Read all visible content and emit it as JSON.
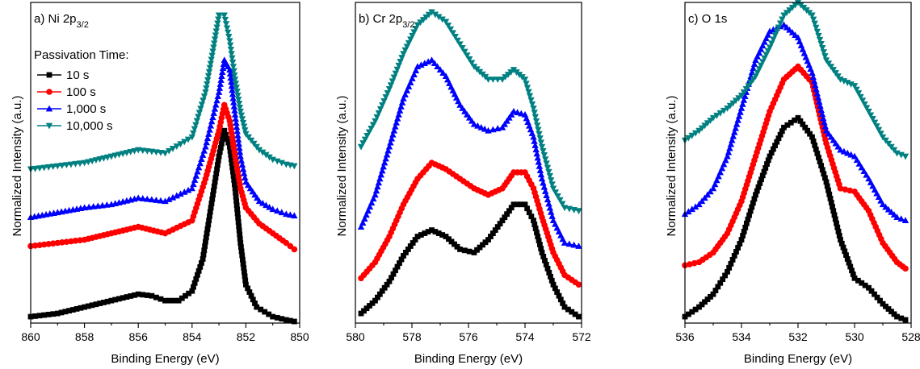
{
  "chart_data": [
    {
      "type": "line",
      "panel_letter": "a)",
      "title_main": "Ni 2p",
      "title_sub": "3/2",
      "xlabel": "Binding Energy (eV)",
      "ylabel": "Normalized Intensity (a.u.)",
      "xlim": [
        860,
        850
      ],
      "x_ticks": [
        860,
        858,
        856,
        854,
        852,
        850
      ],
      "ylim": [
        0,
        1.0
      ],
      "legend": {
        "title": "Passivation Time:",
        "placement": "top-left"
      },
      "series": [
        {
          "name": "10 s",
          "color": "#000000",
          "marker": "square",
          "points": [
            [
              860,
              0.02
            ],
            [
              859,
              0.03
            ],
            [
              858,
              0.05
            ],
            [
              857,
              0.07
            ],
            [
              856,
              0.09
            ],
            [
              855.5,
              0.085
            ],
            [
              855,
              0.07
            ],
            [
              854.5,
              0.07
            ],
            [
              854,
              0.1
            ],
            [
              853.6,
              0.2
            ],
            [
              853.3,
              0.36
            ],
            [
              853,
              0.52
            ],
            [
              852.8,
              0.6
            ],
            [
              852.6,
              0.55
            ],
            [
              852.4,
              0.42
            ],
            [
              852.2,
              0.25
            ],
            [
              852,
              0.12
            ],
            [
              851.6,
              0.05
            ],
            [
              851,
              0.02
            ],
            [
              850.5,
              0.01
            ],
            [
              850.2,
              0.005
            ]
          ]
        },
        {
          "name": "100 s",
          "color": "#ff0000",
          "marker": "circle",
          "points": [
            [
              860,
              0.24
            ],
            [
              859,
              0.25
            ],
            [
              858,
              0.26
            ],
            [
              857,
              0.28
            ],
            [
              856,
              0.3
            ],
            [
              855,
              0.28
            ],
            [
              854,
              0.32
            ],
            [
              853.5,
              0.45
            ],
            [
              853,
              0.6
            ],
            [
              852.8,
              0.68
            ],
            [
              852.6,
              0.63
            ],
            [
              852.4,
              0.52
            ],
            [
              852.2,
              0.42
            ],
            [
              852,
              0.36
            ],
            [
              851.5,
              0.31
            ],
            [
              851,
              0.28
            ],
            [
              850.5,
              0.25
            ],
            [
              850.2,
              0.23
            ]
          ]
        },
        {
          "name": "1,000 s",
          "color": "#0000ff",
          "marker": "triangle-up",
          "points": [
            [
              860,
              0.33
            ],
            [
              859,
              0.345
            ],
            [
              858,
              0.36
            ],
            [
              857,
              0.37
            ],
            [
              856,
              0.39
            ],
            [
              855,
              0.38
            ],
            [
              854,
              0.42
            ],
            [
              853.5,
              0.55
            ],
            [
              853,
              0.72
            ],
            [
              852.8,
              0.82
            ],
            [
              852.6,
              0.79
            ],
            [
              852.4,
              0.65
            ],
            [
              852.2,
              0.52
            ],
            [
              852,
              0.44
            ],
            [
              851.5,
              0.38
            ],
            [
              851,
              0.355
            ],
            [
              850.5,
              0.34
            ],
            [
              850.2,
              0.335
            ]
          ]
        },
        {
          "name": "10,000 s",
          "color": "#008080",
          "marker": "triangle-down",
          "points": [
            [
              860,
              0.48
            ],
            [
              859,
              0.49
            ],
            [
              858,
              0.5
            ],
            [
              857,
              0.52
            ],
            [
              856,
              0.54
            ],
            [
              855,
              0.53
            ],
            [
              854,
              0.58
            ],
            [
              853.5,
              0.72
            ],
            [
              853.2,
              0.86
            ],
            [
              853,
              0.96
            ],
            [
              852.8,
              0.96
            ],
            [
              852.6,
              0.88
            ],
            [
              852.4,
              0.76
            ],
            [
              852.2,
              0.66
            ],
            [
              852,
              0.59
            ],
            [
              851.5,
              0.54
            ],
            [
              851,
              0.51
            ],
            [
              850.5,
              0.495
            ],
            [
              850.2,
              0.49
            ]
          ]
        }
      ]
    },
    {
      "type": "line",
      "panel_letter": "b)",
      "title_main": "Cr 2p",
      "title_sub": "3/2",
      "xlabel": "Binding Energy (eV)",
      "ylabel": "Normalized Intensity (a.u.)",
      "xlim": [
        580,
        572
      ],
      "x_ticks": [
        580,
        578,
        576,
        574,
        572
      ],
      "ylim": [
        0,
        1.0
      ],
      "series": [
        {
          "name": "10 s",
          "color": "#000000",
          "marker": "square",
          "points": [
            [
              579.8,
              0.03
            ],
            [
              579.3,
              0.07
            ],
            [
              578.8,
              0.13
            ],
            [
              578.3,
              0.21
            ],
            [
              577.8,
              0.27
            ],
            [
              577.3,
              0.29
            ],
            [
              576.8,
              0.27
            ],
            [
              576.3,
              0.23
            ],
            [
              575.8,
              0.22
            ],
            [
              575.3,
              0.26
            ],
            [
              574.8,
              0.32
            ],
            [
              574.4,
              0.37
            ],
            [
              574,
              0.37
            ],
            [
              573.7,
              0.32
            ],
            [
              573.4,
              0.22
            ],
            [
              573,
              0.12
            ],
            [
              572.6,
              0.05
            ],
            [
              572.1,
              0.02
            ]
          ]
        },
        {
          "name": "100 s",
          "color": "#ff0000",
          "marker": "circle",
          "points": [
            [
              579.8,
              0.14
            ],
            [
              579.3,
              0.19
            ],
            [
              578.8,
              0.27
            ],
            [
              578.3,
              0.37
            ],
            [
              577.8,
              0.45
            ],
            [
              577.3,
              0.5
            ],
            [
              576.8,
              0.48
            ],
            [
              576.3,
              0.45
            ],
            [
              575.8,
              0.42
            ],
            [
              575.3,
              0.4
            ],
            [
              574.8,
              0.42
            ],
            [
              574.4,
              0.47
            ],
            [
              574,
              0.47
            ],
            [
              573.7,
              0.42
            ],
            [
              573.4,
              0.33
            ],
            [
              573,
              0.22
            ],
            [
              572.6,
              0.15
            ],
            [
              572.1,
              0.12
            ]
          ]
        },
        {
          "name": "1,000 s",
          "color": "#0000ff",
          "marker": "triangle-up",
          "points": [
            [
              579.8,
              0.3
            ],
            [
              579.3,
              0.4
            ],
            [
              578.8,
              0.55
            ],
            [
              578.3,
              0.7
            ],
            [
              577.8,
              0.8
            ],
            [
              577.3,
              0.82
            ],
            [
              576.8,
              0.77
            ],
            [
              576.3,
              0.68
            ],
            [
              575.8,
              0.62
            ],
            [
              575.3,
              0.6
            ],
            [
              574.8,
              0.61
            ],
            [
              574.4,
              0.66
            ],
            [
              574,
              0.65
            ],
            [
              573.7,
              0.58
            ],
            [
              573.4,
              0.45
            ],
            [
              573,
              0.32
            ],
            [
              572.6,
              0.25
            ],
            [
              572.1,
              0.24
            ]
          ]
        },
        {
          "name": "10,000 s",
          "color": "#008080",
          "marker": "triangle-down",
          "points": [
            [
              579.8,
              0.55
            ],
            [
              579.3,
              0.63
            ],
            [
              578.8,
              0.73
            ],
            [
              578.3,
              0.84
            ],
            [
              577.8,
              0.93
            ],
            [
              577.3,
              0.97
            ],
            [
              576.8,
              0.94
            ],
            [
              576.3,
              0.87
            ],
            [
              575.8,
              0.8
            ],
            [
              575.3,
              0.76
            ],
            [
              574.8,
              0.76
            ],
            [
              574.4,
              0.79
            ],
            [
              574,
              0.76
            ],
            [
              573.7,
              0.67
            ],
            [
              573.4,
              0.55
            ],
            [
              573,
              0.42
            ],
            [
              572.6,
              0.36
            ],
            [
              572.1,
              0.35
            ]
          ]
        }
      ]
    },
    {
      "type": "line",
      "panel_letter": "c)",
      "title_main": "O 1s",
      "title_sub": "",
      "xlabel": "Binding Energy (eV)",
      "ylabel": "Normalized Intensity (a.u.)",
      "xlim": [
        536,
        528
      ],
      "x_ticks": [
        536,
        534,
        532,
        530,
        528
      ],
      "ylim": [
        0,
        1.0
      ],
      "series": [
        {
          "name": "10 s",
          "color": "#000000",
          "marker": "square",
          "points": [
            [
              536,
              0.02
            ],
            [
              535.5,
              0.05
            ],
            [
              535,
              0.09
            ],
            [
              534.5,
              0.16
            ],
            [
              534,
              0.26
            ],
            [
              533.5,
              0.4
            ],
            [
              533,
              0.52
            ],
            [
              532.5,
              0.61
            ],
            [
              532,
              0.64
            ],
            [
              531.5,
              0.58
            ],
            [
              531,
              0.44
            ],
            [
              530.5,
              0.26
            ],
            [
              530,
              0.14
            ],
            [
              529.5,
              0.11
            ],
            [
              529,
              0.06
            ],
            [
              528.5,
              0.02
            ],
            [
              528.2,
              0.01
            ]
          ]
        },
        {
          "name": "100 s",
          "color": "#ff0000",
          "marker": "circle",
          "points": [
            [
              536,
              0.18
            ],
            [
              535.5,
              0.19
            ],
            [
              535,
              0.22
            ],
            [
              534.5,
              0.28
            ],
            [
              534,
              0.38
            ],
            [
              533.5,
              0.52
            ],
            [
              533,
              0.66
            ],
            [
              532.5,
              0.76
            ],
            [
              532,
              0.8
            ],
            [
              531.5,
              0.75
            ],
            [
              531,
              0.56
            ],
            [
              530.5,
              0.42
            ],
            [
              530,
              0.41
            ],
            [
              529.5,
              0.35
            ],
            [
              529,
              0.25
            ],
            [
              528.5,
              0.19
            ],
            [
              528.2,
              0.17
            ]
          ]
        },
        {
          "name": "1,000 s",
          "color": "#0000ff",
          "marker": "triangle-up",
          "points": [
            [
              536,
              0.34
            ],
            [
              535.5,
              0.37
            ],
            [
              535,
              0.42
            ],
            [
              534.5,
              0.52
            ],
            [
              534,
              0.67
            ],
            [
              533.5,
              0.82
            ],
            [
              533,
              0.91
            ],
            [
              532.5,
              0.93
            ],
            [
              532,
              0.89
            ],
            [
              531.5,
              0.78
            ],
            [
              531,
              0.6
            ],
            [
              530.5,
              0.54
            ],
            [
              530,
              0.52
            ],
            [
              529.5,
              0.45
            ],
            [
              529,
              0.37
            ],
            [
              528.5,
              0.33
            ],
            [
              528.2,
              0.32
            ]
          ]
        },
        {
          "name": "10,000 s",
          "color": "#008080",
          "marker": "triangle-down",
          "points": [
            [
              536,
              0.57
            ],
            [
              535.5,
              0.6
            ],
            [
              535,
              0.64
            ],
            [
              534.5,
              0.67
            ],
            [
              534,
              0.71
            ],
            [
              533.5,
              0.77
            ],
            [
              533,
              0.86
            ],
            [
              532.5,
              0.96
            ],
            [
              532,
              1.0
            ],
            [
              531.5,
              0.96
            ],
            [
              531,
              0.82
            ],
            [
              530.5,
              0.76
            ],
            [
              530,
              0.74
            ],
            [
              529.5,
              0.66
            ],
            [
              529,
              0.58
            ],
            [
              528.5,
              0.53
            ],
            [
              528.2,
              0.52
            ]
          ]
        }
      ]
    }
  ]
}
